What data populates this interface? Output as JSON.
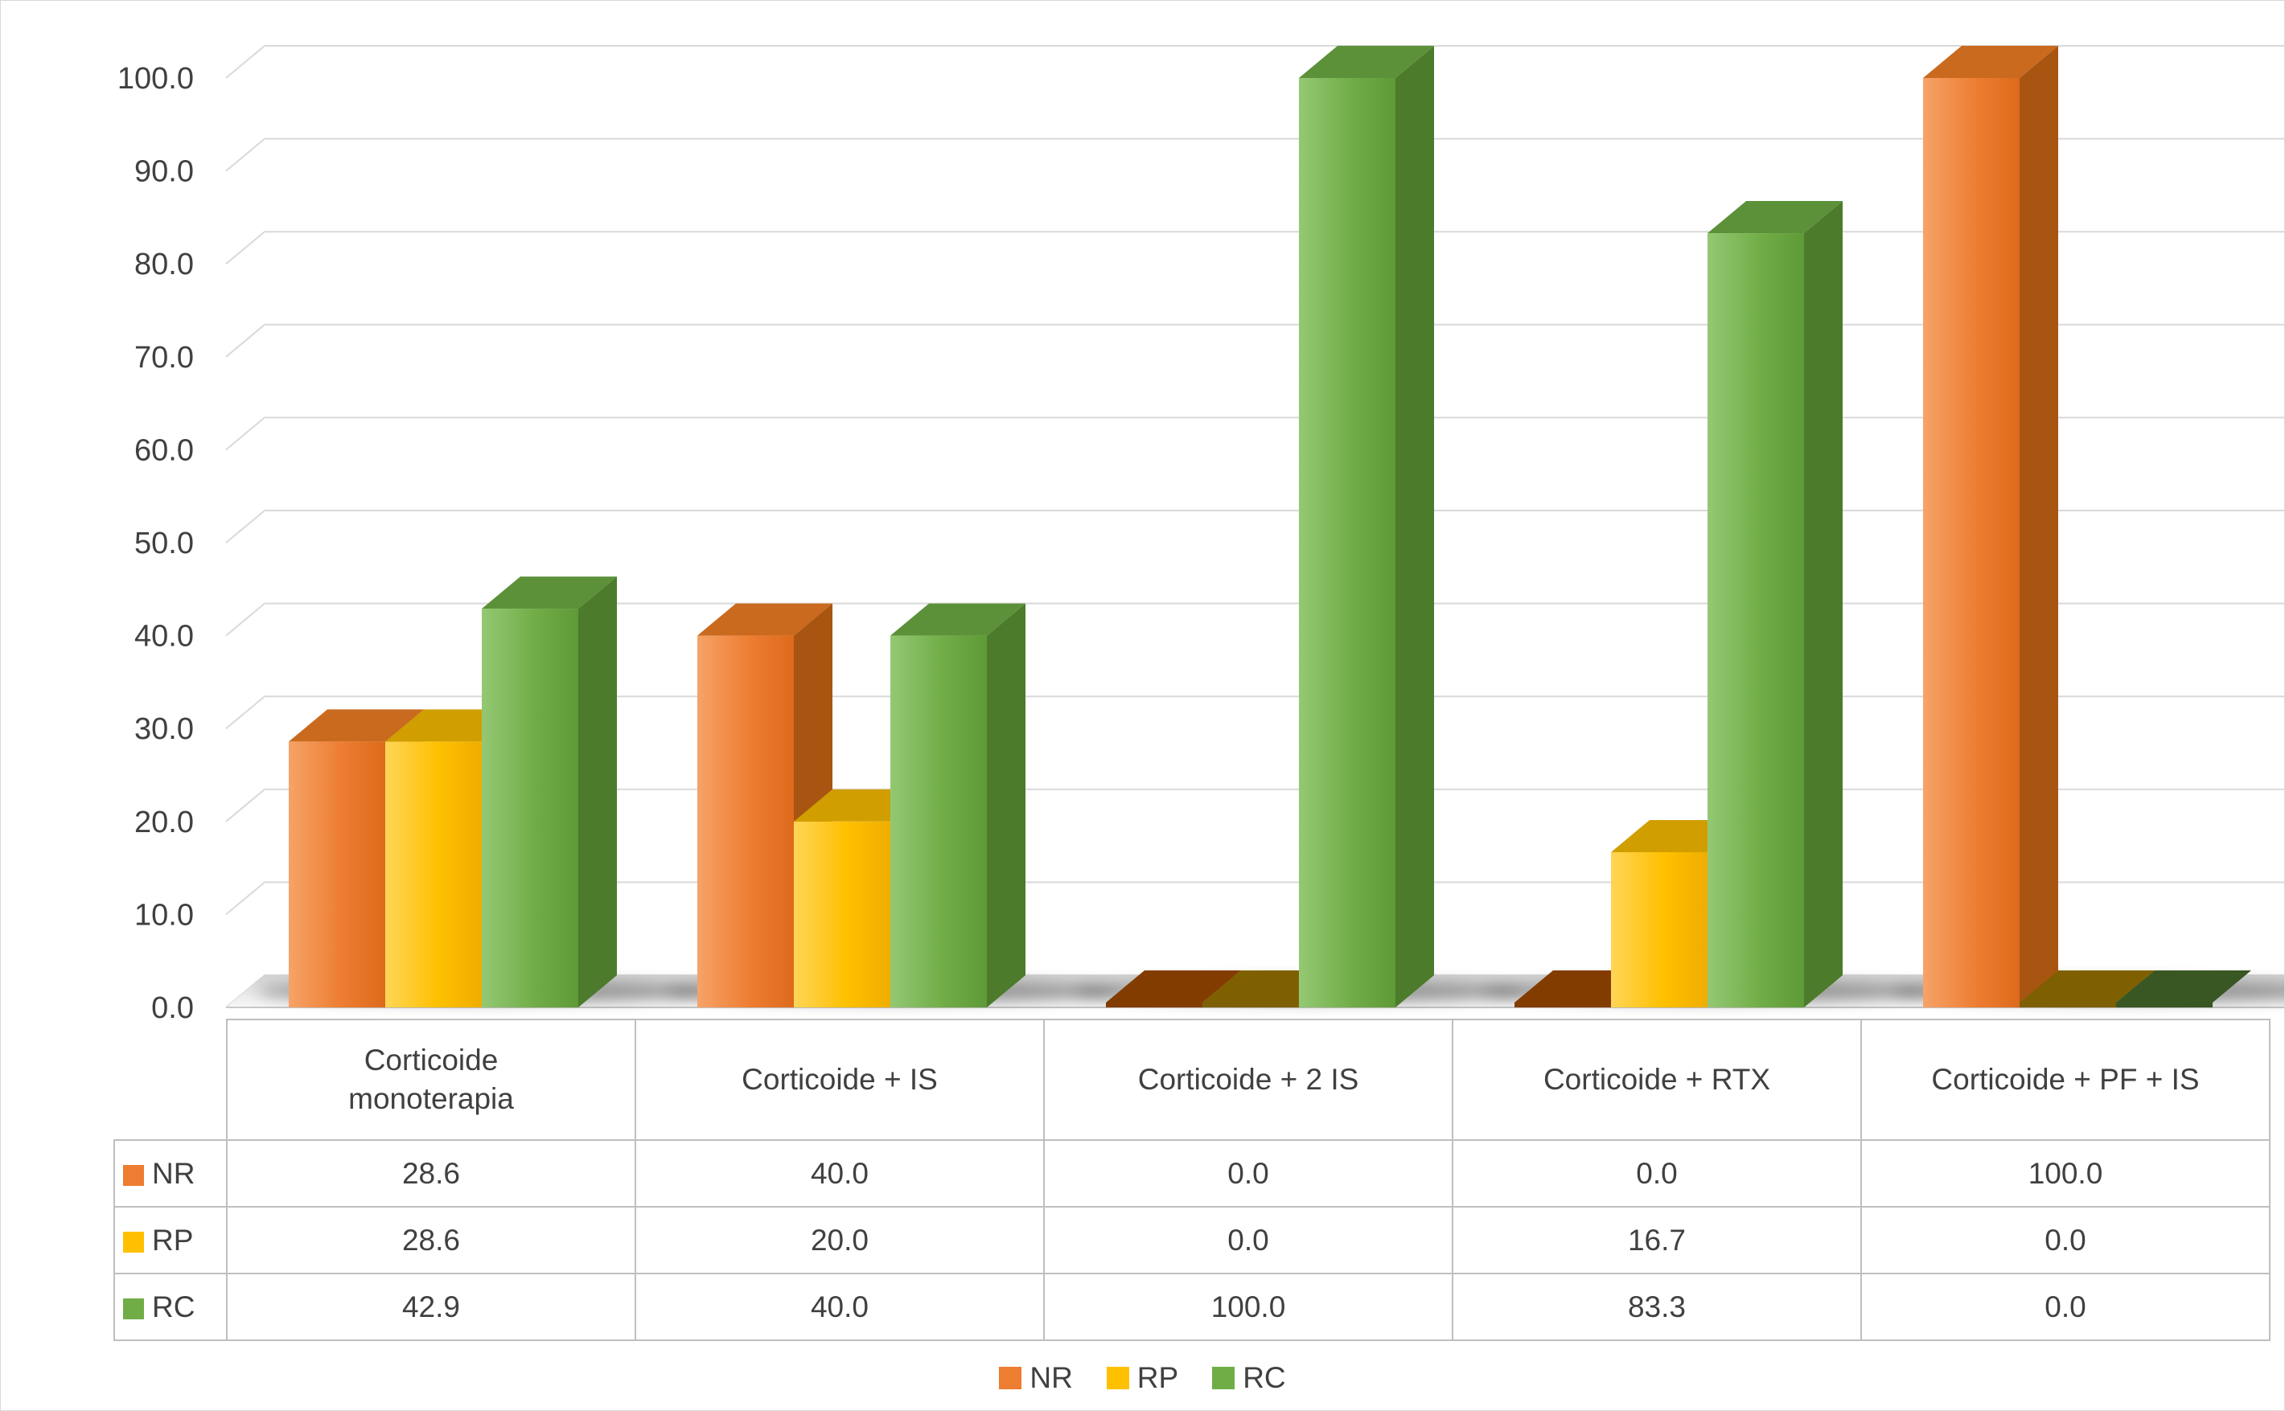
{
  "chart_data": {
    "type": "bar",
    "variant": "3d-clustered-column",
    "title": "",
    "categories": [
      "Corticoide\nmonoterapia",
      "Corticoide + IS",
      "Corticoide + 2 IS",
      "Corticoide + RTX",
      "Corticoide + PF + IS"
    ],
    "series": [
      {
        "name": "NR",
        "values": [
          28.6,
          40.0,
          0.0,
          0.0,
          100.0
        ],
        "labels": [
          "28.6",
          "40.0",
          "0.0",
          "0.0",
          "100.0"
        ],
        "colors": {
          "light": "#F6A368",
          "base": "#ED7D31",
          "dark": "#DE6A1C",
          "side": "#A85512",
          "top": "#C96A1E",
          "zero": "#833C00"
        }
      },
      {
        "name": "RP",
        "values": [
          28.6,
          20.0,
          0.0,
          16.7,
          0.0
        ],
        "labels": [
          "28.6",
          "20.0",
          "0.0",
          "16.7",
          "0.0"
        ],
        "colors": {
          "light": "#FFD558",
          "base": "#FFC000",
          "dark": "#EFAD00",
          "side": "#B08600",
          "top": "#D19E00",
          "zero": "#7F6000"
        }
      },
      {
        "name": "RC",
        "values": [
          42.9,
          40.0,
          100.0,
          83.3,
          0.0
        ],
        "labels": [
          "42.9",
          "40.0",
          "100.0",
          "83.3",
          "0.0"
        ],
        "colors": {
          "light": "#94C873",
          "base": "#70AD47",
          "dark": "#5E9A37",
          "side": "#4C7B2B",
          "top": "#5C913A",
          "zero": "#385723"
        }
      }
    ],
    "y_axis": {
      "min": 0,
      "max": 100,
      "step": 10,
      "tick_labels": [
        "0.0",
        "10.0",
        "20.0",
        "30.0",
        "40.0",
        "50.0",
        "60.0",
        "70.0",
        "80.0",
        "90.0",
        "100.0"
      ]
    },
    "legend": {
      "position": "bottom",
      "entries": [
        "NR",
        "RP",
        "RC"
      ]
    },
    "grid": true,
    "gridline_color": "#D9D9D9",
    "floor_edge_color": "#C8C8C8",
    "text_color": "#404040",
    "table_border_color": "#BFBFBF"
  }
}
